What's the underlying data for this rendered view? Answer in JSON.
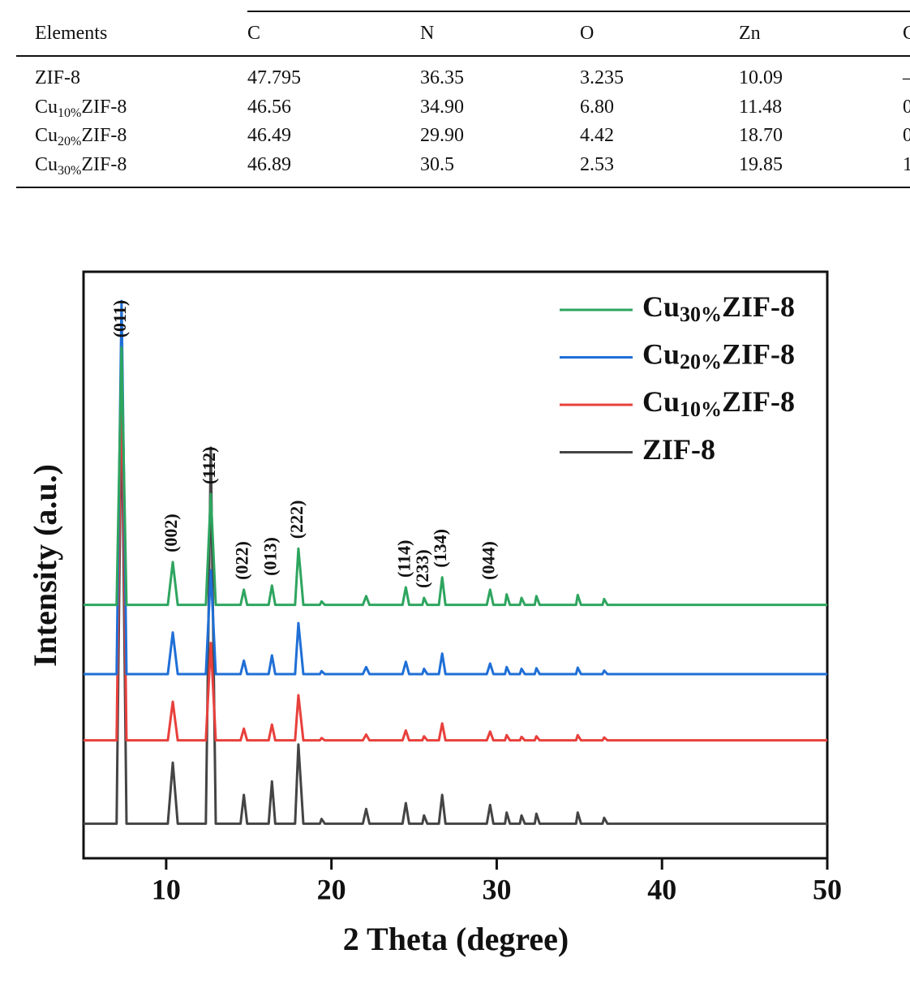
{
  "table": {
    "header": [
      "Elements",
      "C",
      "N",
      "O",
      "Zn",
      "C"
    ],
    "rows": [
      [
        "ZIF-8",
        "47.795",
        "36.35",
        "3.235",
        "10.09",
        "–"
      ],
      [
        "Cu10%ZIF-8",
        "46.56",
        "34.90",
        "6.80",
        "11.48",
        "0"
      ],
      [
        "Cu20%ZIF-8",
        "46.49",
        "29.90",
        "4.42",
        "18.70",
        "0"
      ],
      [
        "Cu30%ZIF-8",
        "46.89",
        "30.5",
        "2.53",
        "19.85",
        "1"
      ]
    ]
  },
  "chart_data": {
    "type": "line",
    "x_label": "2 Theta (degree)",
    "y_label": "Intensity (a.u.)",
    "xlim": [
      5,
      50
    ],
    "xticks": [
      10,
      20,
      30,
      40,
      50
    ],
    "ylim": [
      0,
      100
    ],
    "legend": "upper right",
    "x": [
      5,
      7.0,
      7.3,
      7.6,
      10.1,
      10.4,
      10.7,
      12.4,
      12.7,
      13.0,
      14.5,
      14.7,
      14.9,
      16.2,
      16.4,
      16.6,
      17.8,
      18.0,
      18.3,
      19.3,
      19.4,
      19.6,
      21.9,
      22.1,
      22.3,
      24.3,
      24.5,
      24.7,
      25.5,
      25.6,
      25.8,
      26.5,
      26.7,
      26.9,
      29.4,
      29.6,
      29.8,
      30.5,
      30.6,
      30.8,
      31.4,
      31.5,
      31.7,
      32.3,
      32.4,
      32.6,
      34.8,
      34.9,
      35.1,
      36.4,
      36.5,
      36.7,
      50
    ],
    "series": [
      {
        "name": "Cu30%ZIF-8",
        "color": "#2ea55f",
        "values": [
          43.2,
          43.2,
          87.1,
          43.2,
          43.2,
          50.5,
          43.2,
          43.2,
          62.1,
          43.2,
          43.2,
          45.8,
          43.2,
          43.2,
          46.5,
          43.2,
          43.2,
          52.8,
          43.2,
          43.2,
          43.8,
          43.2,
          43.2,
          44.7,
          43.2,
          43.2,
          46.2,
          43.2,
          43.2,
          44.4,
          43.2,
          43.2,
          47.9,
          43.2,
          43.2,
          45.8,
          43.2,
          43.2,
          45.0,
          43.2,
          43.2,
          44.4,
          43.2,
          43.2,
          44.7,
          43.2,
          43.2,
          44.9,
          43.2,
          43.2,
          44.2,
          43.2,
          43.2
        ]
      },
      {
        "name": "Cu20%ZIF-8",
        "color": "#1f6fd6",
        "values": [
          31.4,
          31.4,
          95,
          31.4,
          31.4,
          38.5,
          31.4,
          31.4,
          49.1,
          31.4,
          31.4,
          33.7,
          31.4,
          31.4,
          34.6,
          31.4,
          31.4,
          40.1,
          31.4,
          31.4,
          31.9,
          31.4,
          31.4,
          32.6,
          31.4,
          31.4,
          33.5,
          31.4,
          31.4,
          32.3,
          31.4,
          31.4,
          34.9,
          31.4,
          31.4,
          33.2,
          31.4,
          31.4,
          32.6,
          31.4,
          31.4,
          32.3,
          31.4,
          31.4,
          32.4,
          31.4,
          31.4,
          32.5,
          31.4,
          31.4,
          32.0,
          31.4,
          31.4
        ]
      },
      {
        "name": "Cu10%ZIF-8",
        "color": "#e8403c",
        "values": [
          20.1,
          20.1,
          85,
          20.1,
          20.1,
          26.7,
          20.1,
          20.1,
          36.7,
          20.1,
          20.1,
          22.1,
          20.1,
          20.1,
          22.8,
          20.1,
          20.1,
          27.8,
          20.1,
          20.1,
          20.5,
          20.1,
          20.1,
          21.1,
          20.1,
          20.1,
          21.8,
          20.1,
          20.1,
          20.8,
          20.1,
          20.1,
          23.0,
          20.1,
          20.1,
          21.6,
          20.1,
          20.1,
          21.0,
          20.1,
          20.1,
          20.7,
          20.1,
          20.1,
          20.8,
          20.1,
          20.1,
          21.0,
          20.1,
          20.1,
          20.6,
          20.1,
          20.1
        ]
      },
      {
        "name": "ZIF-8",
        "color": "#444444",
        "values": [
          5.9,
          5.9,
          80,
          5.9,
          5.9,
          16.3,
          5.9,
          5.9,
          70,
          5.9,
          5.9,
          10.8,
          5.9,
          5.9,
          13.1,
          5.9,
          5.9,
          19.4,
          5.9,
          5.9,
          6.7,
          5.9,
          5.9,
          8.4,
          5.9,
          5.9,
          9.4,
          5.9,
          5.9,
          7.3,
          5.9,
          5.9,
          10.8,
          5.9,
          5.9,
          9.1,
          5.9,
          5.9,
          7.8,
          5.9,
          5.9,
          7.3,
          5.9,
          5.9,
          7.6,
          5.9,
          5.9,
          7.8,
          5.9,
          5.9,
          6.9,
          5.9,
          5.9
        ]
      }
    ],
    "annotations": [
      {
        "text": "(011)",
        "x": 7.3
      },
      {
        "text": "(002)",
        "x": 10.4
      },
      {
        "text": "(112)",
        "x": 12.7
      },
      {
        "text": "(022)",
        "x": 14.7
      },
      {
        "text": "(013)",
        "x": 16.4
      },
      {
        "text": "(222)",
        "x": 18.0
      },
      {
        "text": "(114)",
        "x": 24.5
      },
      {
        "text": "(233)",
        "x": 25.6
      },
      {
        "text": "(134)",
        "x": 26.7
      },
      {
        "text": "(044)",
        "x": 29.6
      }
    ]
  }
}
